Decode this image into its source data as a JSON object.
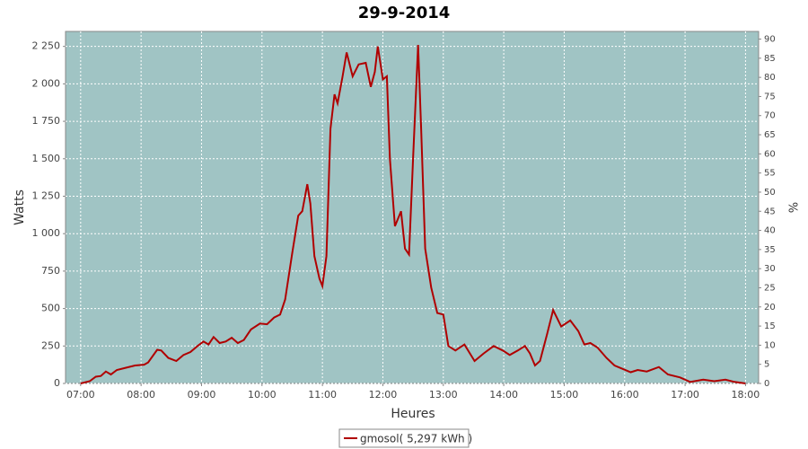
{
  "chart_data": {
    "type": "line",
    "title": "29-9-2014",
    "x_label": "Heures",
    "y_label": "Watts",
    "y2_label": "%",
    "x": [
      "07:00",
      "07:09",
      "07:15",
      "07:20",
      "07:25",
      "07:30",
      "07:36",
      "07:45",
      "07:54",
      "08:03",
      "08:07",
      "08:16",
      "08:20",
      "08:27",
      "08:35",
      "08:42",
      "08:49",
      "08:56",
      "09:02",
      "09:07",
      "09:12",
      "09:18",
      "09:24",
      "09:30",
      "09:36",
      "09:42",
      "09:49",
      "09:58",
      "10:05",
      "10:12",
      "10:18",
      "10:23",
      "10:30",
      "10:36",
      "10:40",
      "10:45",
      "10:48",
      "10:52",
      "10:57",
      "11:00",
      "11:04",
      "11:08",
      "11:12",
      "11:15",
      "11:20",
      "11:24",
      "11:30",
      "11:36",
      "11:43",
      "11:48",
      "11:52",
      "11:55",
      "12:00",
      "12:04",
      "12:07",
      "12:12",
      "12:18",
      "12:22",
      "12:26",
      "12:30",
      "12:35",
      "12:38",
      "12:42",
      "12:48",
      "12:54",
      "13:00",
      "13:05",
      "13:12",
      "13:21",
      "13:31",
      "13:40",
      "13:50",
      "13:59",
      "14:06",
      "14:14",
      "14:21",
      "14:26",
      "14:31",
      "14:36",
      "14:43",
      "14:49",
      "14:57",
      "15:06",
      "15:14",
      "15:20",
      "15:26",
      "15:33",
      "15:42",
      "15:50",
      "15:57",
      "16:06",
      "16:13",
      "16:22",
      "16:34",
      "16:43",
      "16:55",
      "17:05",
      "17:18",
      "17:29",
      "17:40",
      "17:49",
      "18:00"
    ],
    "series": [
      {
        "name": "gmosol( 5,297 kWh )",
        "color": "#b00000",
        "values": [
          0,
          15,
          45,
          50,
          80,
          60,
          90,
          105,
          120,
          125,
          140,
          225,
          220,
          170,
          150,
          190,
          210,
          250,
          280,
          260,
          310,
          270,
          280,
          305,
          270,
          290,
          360,
          400,
          395,
          440,
          460,
          560,
          870,
          1120,
          1150,
          1330,
          1200,
          850,
          700,
          650,
          850,
          1700,
          1930,
          1870,
          2050,
          2210,
          2050,
          2130,
          2140,
          1980,
          2080,
          2250,
          2030,
          2050,
          1500,
          1050,
          1150,
          900,
          860,
          1500,
          2260,
          1700,
          900,
          640,
          470,
          460,
          250,
          220,
          260,
          150,
          200,
          250,
          220,
          190,
          220,
          250,
          200,
          120,
          150,
          330,
          490,
          380,
          420,
          350,
          260,
          270,
          240,
          170,
          120,
          100,
          75,
          90,
          80,
          110,
          60,
          40,
          10,
          25,
          15,
          25,
          10,
          0
        ]
      }
    ],
    "xlim": [
      "06:45",
      "18:13"
    ],
    "xticks": [
      "07:00",
      "08:00",
      "09:00",
      "10:00",
      "11:00",
      "12:00",
      "13:00",
      "14:00",
      "15:00",
      "16:00",
      "17:00",
      "18:00"
    ],
    "ylim": [
      0,
      2350
    ],
    "yticks": [
      0,
      250,
      500,
      750,
      {
        "value": 1000,
        "label": "1 000"
      },
      {
        "value": 1250,
        "label": "1 250"
      },
      {
        "value": 1500,
        "label": "1 500"
      },
      {
        "value": 1750,
        "label": "1 750"
      },
      {
        "value": 2000,
        "label": "2 000"
      },
      {
        "value": 2250,
        "label": "2 250"
      }
    ],
    "y2lim": [
      0,
      92
    ],
    "y2ticks": [
      0,
      5,
      10,
      15,
      20,
      25,
      30,
      35,
      40,
      45,
      50,
      55,
      60,
      65,
      70,
      75,
      80,
      85,
      90
    ],
    "grid": true
  }
}
